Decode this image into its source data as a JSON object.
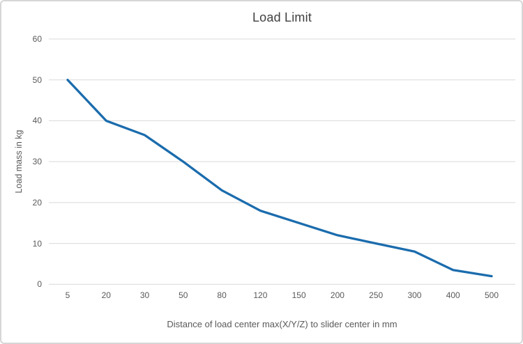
{
  "chart_data": {
    "type": "line",
    "title": "Load Limit",
    "xlabel": "Distance of load center max(X/Y/Z) to slider center in mm",
    "ylabel": "Load mass in kg",
    "categories": [
      "5",
      "20",
      "30",
      "50",
      "80",
      "120",
      "150",
      "200",
      "250",
      "300",
      "400",
      "500"
    ],
    "values": [
      50,
      40,
      36.5,
      30,
      23,
      18,
      15,
      12,
      10,
      8,
      3.5,
      2
    ],
    "series_name": "Load limit",
    "ylim": [
      0,
      60
    ],
    "ytick_step": 10,
    "ytick_labels": [
      "0",
      "10",
      "20",
      "30",
      "40",
      "50",
      "60"
    ],
    "grid": "horizontal",
    "legend_position": "none",
    "line_color": "#1b6cad",
    "gridline_color": "#d9d9d9",
    "title_color": "#404040",
    "tick_color": "#595959",
    "frame_border_color": "#d6d6d6",
    "background_color": "#ffffff"
  }
}
